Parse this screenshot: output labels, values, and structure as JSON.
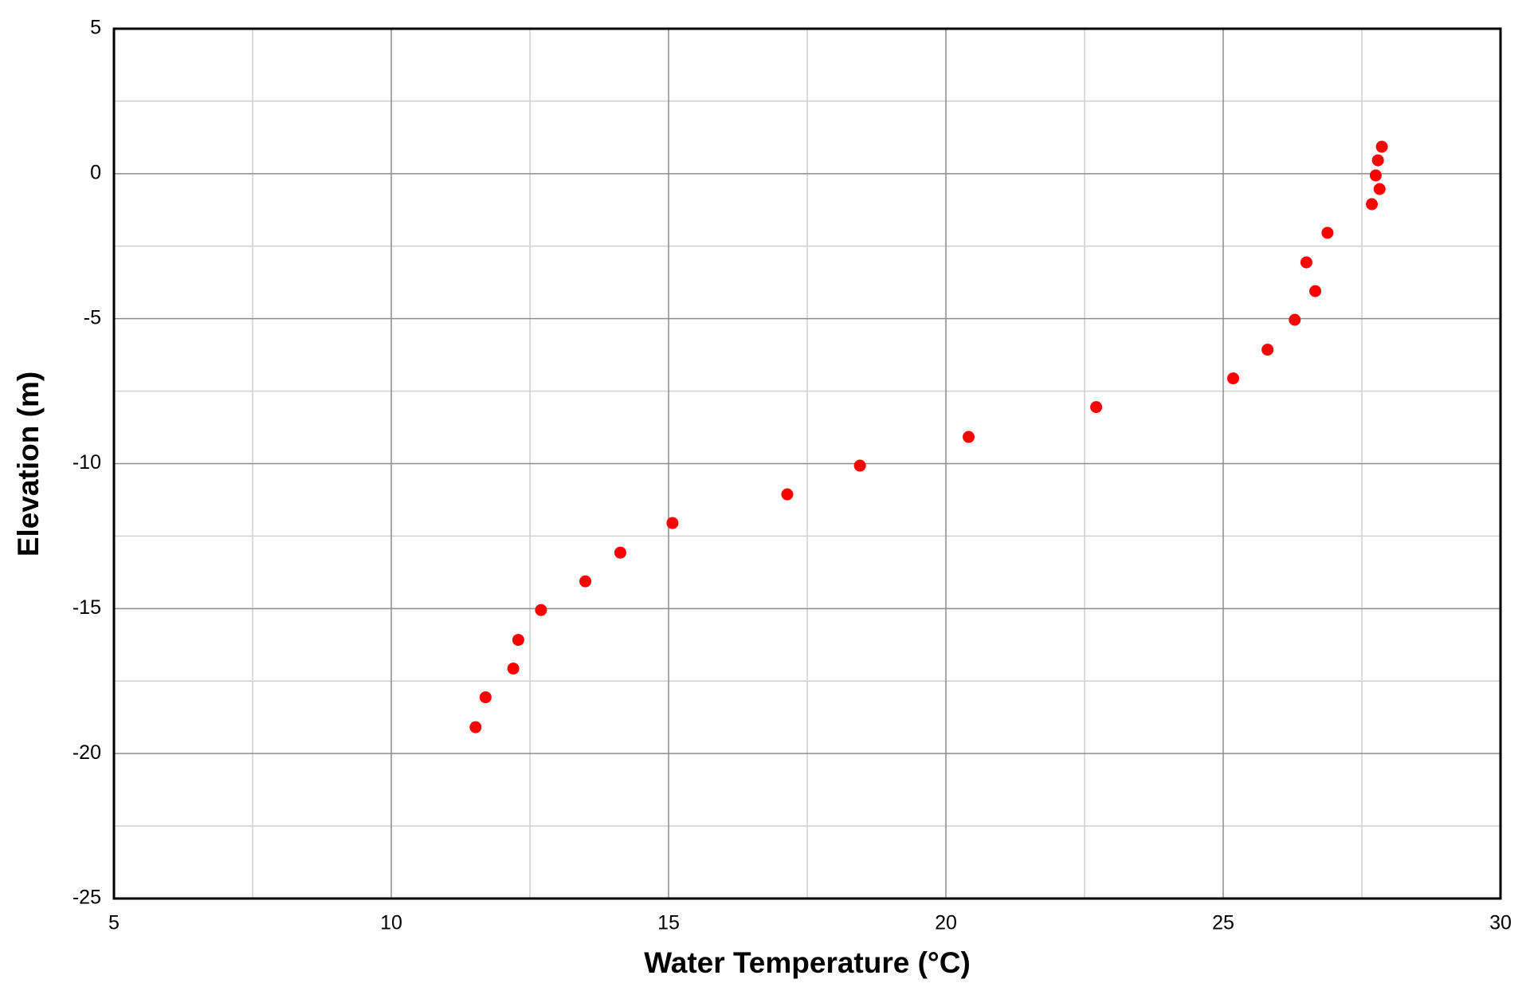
{
  "chart_data": {
    "type": "scatter",
    "x_label": "Water Temperature (°C)",
    "y_label": "Elevation (m)",
    "xlim": [
      5,
      30
    ],
    "ylim": [
      -25,
      5
    ],
    "xticks": [
      5,
      10,
      15,
      20,
      25,
      30
    ],
    "yticks": [
      -25,
      -20,
      -15,
      -10,
      -5,
      0,
      5
    ],
    "minor_xticks": [
      7.5,
      12.5,
      17.5,
      22.5,
      27.5
    ],
    "minor_yticks": [
      -22.5,
      -17.5,
      -12.5,
      -7.5,
      -2.5,
      2.5
    ],
    "grid": true,
    "color": "#ff0000",
    "x": [
      27.86,
      27.79,
      27.75,
      27.82,
      27.68,
      26.88,
      26.5,
      26.66,
      26.29,
      25.8,
      25.18,
      22.71,
      20.41,
      18.45,
      17.14,
      15.07,
      14.13,
      13.5,
      12.7,
      12.29,
      12.2,
      11.7,
      11.52
    ],
    "values": [
      0.93,
      0.46,
      -0.06,
      -0.53,
      -1.05,
      -2.04,
      -3.06,
      -4.05,
      -5.04,
      -6.07,
      -7.06,
      -8.05,
      -9.08,
      -10.07,
      -11.06,
      -12.05,
      -13.07,
      -14.06,
      -15.05,
      -16.08,
      -17.07,
      -18.06,
      -19.09
    ]
  }
}
